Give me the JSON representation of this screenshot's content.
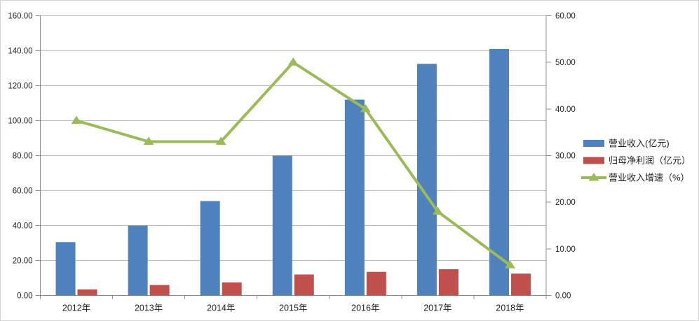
{
  "chart_data": {
    "type": "bar",
    "subtype": "combo-bar-line-dual-axis",
    "categories": [
      "2012年",
      "2013年",
      "2014年",
      "2015年",
      "2016年",
      "2017年",
      "2018年"
    ],
    "series": [
      {
        "key": "revenue",
        "name": "营业收入(亿元)",
        "type": "bar",
        "axis": "left",
        "color": "#4f81bd",
        "values": [
          30.5,
          40,
          54,
          80,
          112,
          132.5,
          141
        ]
      },
      {
        "key": "profit",
        "name": "归母净利润（亿元）",
        "type": "bar",
        "axis": "left",
        "color": "#c0504d",
        "values": [
          3.5,
          6,
          7.5,
          12,
          13.5,
          15,
          12.5
        ]
      },
      {
        "key": "growth",
        "name": "营业收入增速（%）",
        "type": "line",
        "marker": "triangle",
        "axis": "right",
        "color": "#9bbb59",
        "values": [
          37.5,
          33,
          33,
          50,
          40,
          18,
          6.5
        ]
      }
    ],
    "left_axis": {
      "min": 0,
      "max": 160,
      "step": 20,
      "tick_labels": [
        "0.00",
        "20.00",
        "40.00",
        "60.00",
        "80.00",
        "100.00",
        "120.00",
        "140.00",
        "160.00"
      ]
    },
    "right_axis": {
      "min": 0,
      "max": 60,
      "step": 10,
      "tick_labels": [
        "0.00",
        "10.00",
        "20.00",
        "30.00",
        "40.00",
        "50.00",
        "60.00"
      ]
    },
    "grid": true,
    "legend_position": "right",
    "title": "",
    "xlabel": "",
    "ylabel": "",
    "colors": {
      "gridline": "#bfbfbf",
      "axis_line": "#8c8c8c",
      "tick_text": "#1f1f1f",
      "background": "#ffffff"
    }
  }
}
